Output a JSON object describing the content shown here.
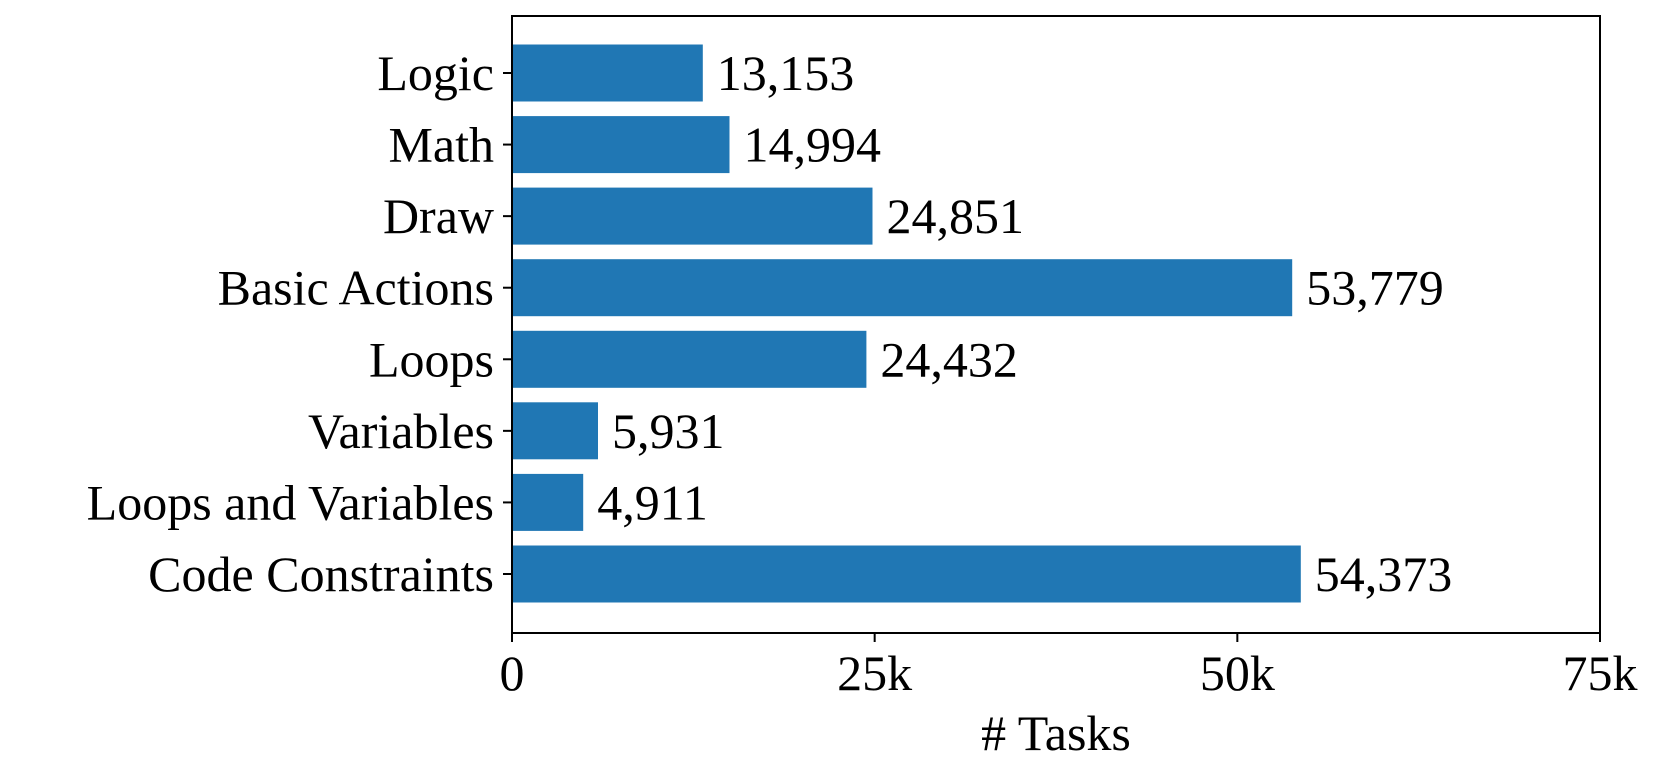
{
  "chart_data": {
    "type": "bar",
    "orientation": "horizontal",
    "categories": [
      "Logic",
      "Math",
      "Draw",
      "Basic Actions",
      "Loops",
      "Variables",
      "Loops and Variables",
      "Code Constraints"
    ],
    "values": [
      13153,
      14994,
      24851,
      53779,
      24432,
      5931,
      4911,
      54373
    ],
    "value_labels": [
      "13,153",
      "14,994",
      "24,851",
      "53,779",
      "24,432",
      "5,931",
      "4,911",
      "54,373"
    ],
    "title": "",
    "xlabel": "# Tasks",
    "ylabel": "",
    "xlim": [
      0,
      75000
    ],
    "x_ticks": [
      0,
      25000,
      50000,
      75000
    ],
    "x_tick_labels": [
      "0",
      "25k",
      "50k",
      "75k"
    ],
    "grid": false,
    "bar_color": "#2077b4"
  }
}
